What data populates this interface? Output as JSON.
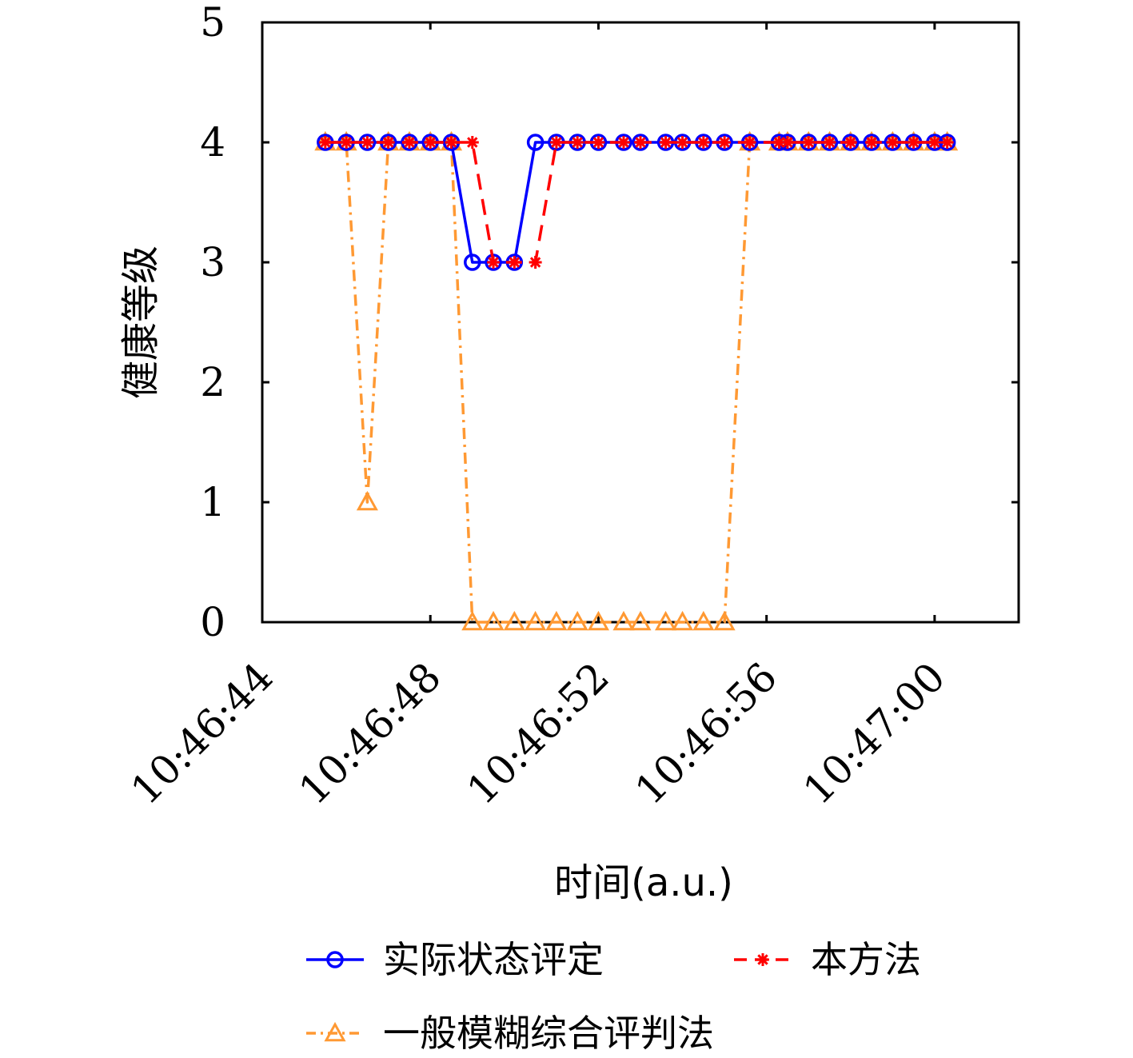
{
  "chart_data": {
    "type": "line",
    "title": "",
    "xlabel": "时间(a.u.)",
    "ylabel": "健康等级",
    "x_tick_labels": [
      "10:46:44",
      "10:46:48",
      "10:46:52",
      "10:46:56",
      "10:47:00"
    ],
    "y_tick_labels": [
      "0",
      "1",
      "2",
      "3",
      "4",
      "5"
    ],
    "ylim": [
      0,
      5
    ],
    "xlim": [
      "10:46:44",
      "10:47:02"
    ],
    "grid": false,
    "legend_position": "bottom",
    "x": [
      "10:46:45.5",
      "10:46:46.0",
      "10:46:46.5",
      "10:46:47.0",
      "10:46:47.5",
      "10:46:48.0",
      "10:46:48.5",
      "10:46:49.0",
      "10:46:49.5",
      "10:46:50.0",
      "10:46:50.5",
      "10:46:51.0",
      "10:46:51.5",
      "10:46:52.0",
      "10:46:52.6",
      "10:46:53.0",
      "10:46:53.6",
      "10:46:54.0",
      "10:46:54.5",
      "10:46:55.0",
      "10:46:55.6",
      "10:46:56.3",
      "10:46:56.5",
      "10:46:57.0",
      "10:46:57.5",
      "10:46:58.0",
      "10:46:58.5",
      "10:46:59.0",
      "10:46:59.5",
      "10:47:00.0",
      "10:47:00.3"
    ],
    "series": [
      {
        "name": "实际状态评定",
        "color": "#0000ff",
        "line_style": "solid",
        "marker": "circle",
        "values": [
          4,
          4,
          4,
          4,
          4,
          4,
          4,
          3,
          3,
          3,
          4,
          4,
          4,
          4,
          4,
          4,
          4,
          4,
          4,
          4,
          4,
          4,
          4,
          4,
          4,
          4,
          4,
          4,
          4,
          4,
          4
        ]
      },
      {
        "name": "本方法",
        "color": "#ff0000",
        "line_style": "dashed",
        "marker": "asterisk",
        "values": [
          4,
          4,
          4,
          4,
          4,
          4,
          4,
          4,
          3,
          3,
          3,
          4,
          4,
          4,
          4,
          4,
          4,
          4,
          4,
          4,
          4,
          4,
          4,
          4,
          4,
          4,
          4,
          4,
          4,
          4,
          4
        ]
      },
      {
        "name": "一般模糊综合评判法",
        "color": "#ff9933",
        "line_style": "dashdot",
        "marker": "triangle",
        "values": [
          4,
          4,
          1,
          4,
          4,
          4,
          4,
          0,
          0,
          0,
          0,
          0,
          0,
          0,
          0,
          0,
          0,
          0,
          0,
          0,
          4,
          4,
          4,
          4,
          4,
          4,
          4,
          4,
          4,
          4,
          4
        ]
      }
    ]
  }
}
